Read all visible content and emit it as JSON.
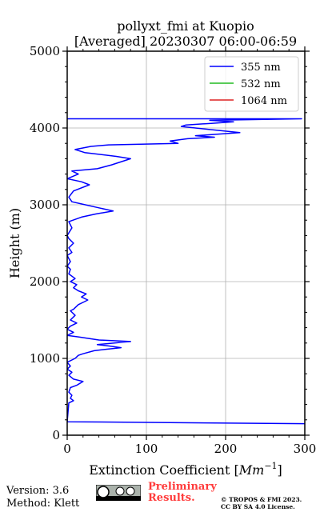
{
  "chart_data": {
    "type": "line",
    "title": "pollyxt_fmi at Kuopio",
    "subtitle": "[Averaged] 20230307 06:00-06:59",
    "xlabel": "Extinction Coefficient [Mm⁻¹]",
    "ylabel": "Height (m)",
    "xlim": [
      0,
      300
    ],
    "ylim": [
      0,
      5000
    ],
    "xticks": [
      "0",
      "100",
      "200",
      "300"
    ],
    "yticks": [
      "0",
      "1000",
      "2000",
      "3000",
      "4000",
      "5000"
    ],
    "x_tick_values": [
      0,
      100,
      200,
      300
    ],
    "y_tick_values": [
      0,
      1000,
      2000,
      3000,
      4000,
      5000
    ],
    "grid": true,
    "legend_position": "top-right",
    "series": [
      {
        "name": "355 nm",
        "color": "#0000ff",
        "points": [
          [
            300,
            150
          ],
          [
            0,
            175
          ],
          [
            2,
            420
          ],
          [
            8,
            450
          ],
          [
            4,
            480
          ],
          [
            6,
            520
          ],
          [
            2,
            560
          ],
          [
            4,
            620
          ],
          [
            12,
            650
          ],
          [
            20,
            700
          ],
          [
            8,
            730
          ],
          [
            2,
            780
          ],
          [
            6,
            820
          ],
          [
            0,
            860
          ],
          [
            4,
            900
          ],
          [
            0,
            950
          ],
          [
            10,
            1000
          ],
          [
            14,
            1040
          ],
          [
            20,
            1060
          ],
          [
            34,
            1100
          ],
          [
            50,
            1120
          ],
          [
            68,
            1140
          ],
          [
            54,
            1160
          ],
          [
            38,
            1180
          ],
          [
            80,
            1220
          ],
          [
            40,
            1240
          ],
          [
            14,
            1280
          ],
          [
            0,
            1300
          ],
          [
            8,
            1340
          ],
          [
            0,
            1380
          ],
          [
            4,
            1420
          ],
          [
            12,
            1460
          ],
          [
            4,
            1500
          ],
          [
            10,
            1560
          ],
          [
            4,
            1620
          ],
          [
            8,
            1640
          ],
          [
            14,
            1700
          ],
          [
            22,
            1740
          ],
          [
            26,
            1760
          ],
          [
            18,
            1800
          ],
          [
            24,
            1840
          ],
          [
            14,
            1880
          ],
          [
            8,
            1920
          ],
          [
            12,
            1960
          ],
          [
            4,
            2000
          ],
          [
            10,
            2040
          ],
          [
            2,
            2100
          ],
          [
            4,
            2160
          ],
          [
            0,
            2200
          ],
          [
            4,
            2260
          ],
          [
            0,
            2340
          ],
          [
            6,
            2380
          ],
          [
            2,
            2440
          ],
          [
            8,
            2500
          ],
          [
            2,
            2560
          ],
          [
            0,
            2600
          ],
          [
            6,
            2700
          ],
          [
            2,
            2780
          ],
          [
            18,
            2840
          ],
          [
            36,
            2880
          ],
          [
            58,
            2920
          ],
          [
            40,
            2960
          ],
          [
            6,
            3040
          ],
          [
            2,
            3100
          ],
          [
            8,
            3180
          ],
          [
            28,
            3260
          ],
          [
            18,
            3300
          ],
          [
            0,
            3340
          ],
          [
            14,
            3400
          ],
          [
            6,
            3440
          ],
          [
            38,
            3470
          ],
          [
            56,
            3520
          ],
          [
            80,
            3600
          ],
          [
            62,
            3630
          ],
          [
            22,
            3680
          ],
          [
            10,
            3720
          ],
          [
            30,
            3760
          ],
          [
            52,
            3780
          ],
          [
            140,
            3800
          ],
          [
            130,
            3830
          ],
          [
            152,
            3860
          ],
          [
            186,
            3880
          ],
          [
            162,
            3900
          ],
          [
            218,
            3940
          ],
          [
            180,
            3980
          ],
          [
            144,
            4020
          ],
          [
            150,
            4040
          ],
          [
            182,
            4060
          ],
          [
            210,
            4080
          ],
          [
            180,
            4100
          ],
          [
            296,
            4120
          ],
          [
            0,
            4120
          ]
        ]
      },
      {
        "name": "532 nm",
        "color": "#22bb22",
        "points": []
      },
      {
        "name": "1064 nm",
        "color": "#dd2222",
        "points": []
      }
    ]
  },
  "footer": {
    "version": "Version: 3.6",
    "method": "Method: Klett",
    "preliminary_line1": "Preliminary",
    "preliminary_line2": "Results.",
    "copyright_line1": "© TROPOS & FMI 2023.",
    "copyright_line2": "CC BY SA 4.0 License."
  }
}
